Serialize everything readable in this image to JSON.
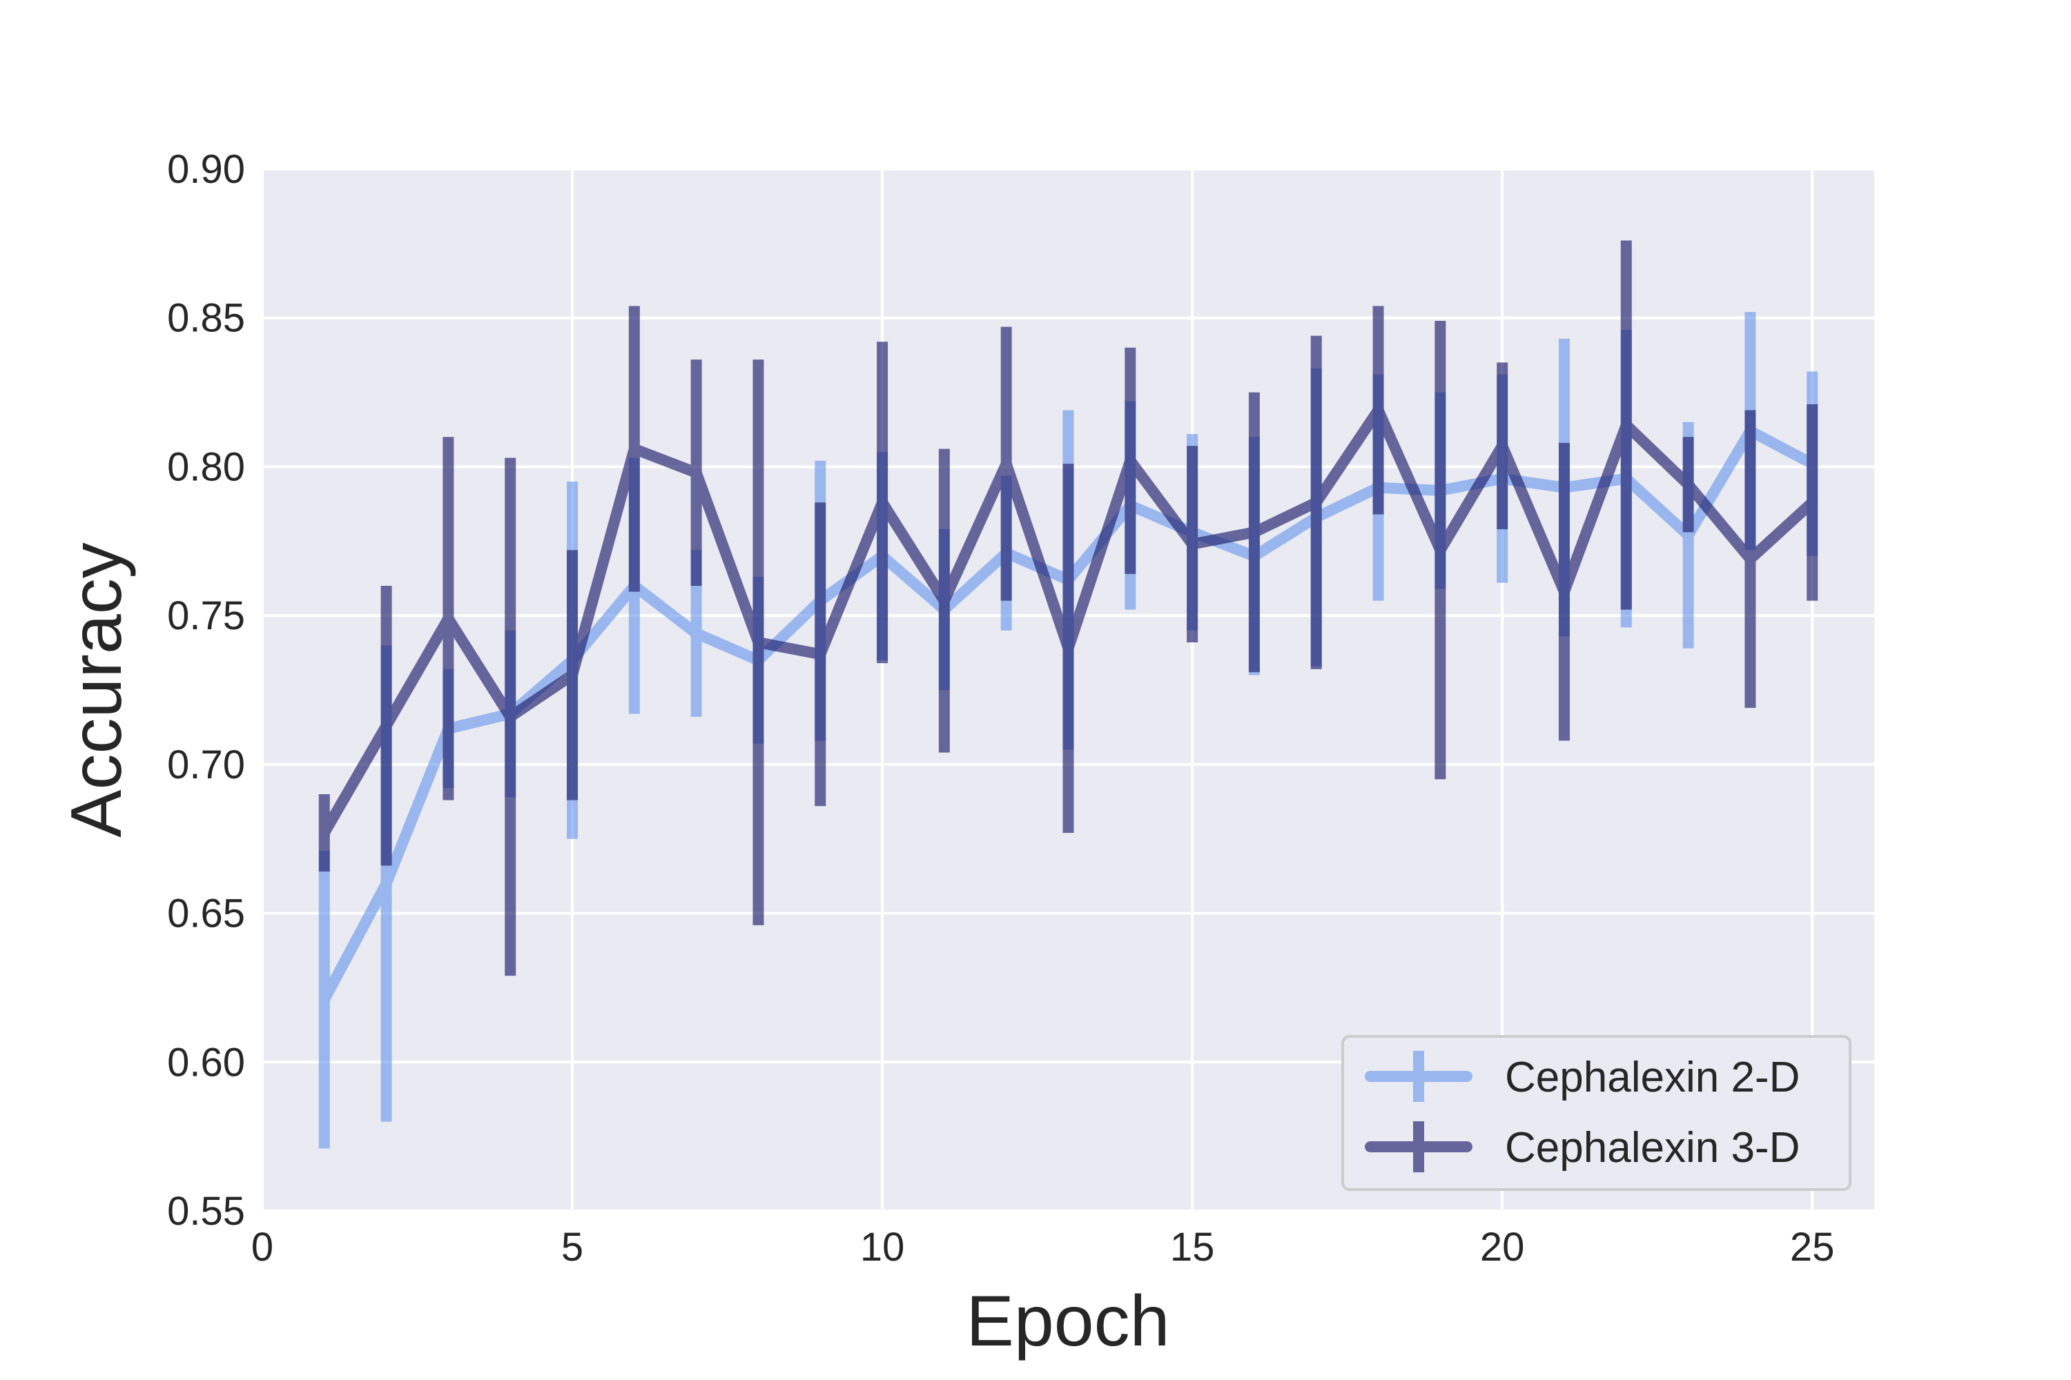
{
  "chart_data": {
    "type": "line",
    "xlabel": "Epoch",
    "ylabel": "Accuracy",
    "xlim": [
      0,
      26
    ],
    "ylim": [
      0.55,
      0.9
    ],
    "xticks": [
      0,
      5,
      10,
      15,
      20,
      25
    ],
    "yticks": [
      0.55,
      0.6,
      0.65,
      0.7,
      0.75,
      0.8,
      0.85,
      0.9
    ],
    "xtick_labels": [
      "0",
      "5",
      "10",
      "15",
      "20",
      "25"
    ],
    "ytick_labels": [
      "0.55",
      "0.60",
      "0.65",
      "0.70",
      "0.75",
      "0.80",
      "0.85",
      "0.90"
    ],
    "grid": true,
    "legend_position": "bottom-right",
    "x": [
      1,
      2,
      3,
      4,
      5,
      6,
      7,
      8,
      9,
      10,
      11,
      12,
      13,
      14,
      15,
      16,
      17,
      18,
      19,
      20,
      21,
      22,
      23,
      24,
      25
    ],
    "series": [
      {
        "name": "Cephalexin 2-D",
        "color": "#6495ED",
        "values": [
          0.621,
          0.66,
          0.712,
          0.717,
          0.735,
          0.76,
          0.744,
          0.735,
          0.755,
          0.77,
          0.752,
          0.771,
          0.762,
          0.787,
          0.778,
          0.77,
          0.783,
          0.793,
          0.792,
          0.796,
          0.793,
          0.796,
          0.777,
          0.812,
          0.801
        ],
        "errors": [
          0.05,
          0.08,
          0.02,
          0.028,
          0.06,
          0.043,
          0.028,
          0.028,
          0.047,
          0.035,
          0.027,
          0.026,
          0.057,
          0.035,
          0.033,
          0.04,
          0.05,
          0.038,
          0.033,
          0.035,
          0.05,
          0.05,
          0.038,
          0.04,
          0.031
        ]
      },
      {
        "name": "Cephalexin 3-D",
        "color": "#1F1F6E",
        "values": [
          0.677,
          0.713,
          0.749,
          0.716,
          0.73,
          0.806,
          0.798,
          0.741,
          0.737,
          0.788,
          0.755,
          0.801,
          0.739,
          0.802,
          0.774,
          0.778,
          0.788,
          0.819,
          0.772,
          0.807,
          0.758,
          0.814,
          0.794,
          0.769,
          0.788
        ],
        "errors": [
          0.013,
          0.047,
          0.061,
          0.087,
          0.042,
          0.048,
          0.038,
          0.095,
          0.051,
          0.054,
          0.051,
          0.046,
          0.062,
          0.038,
          0.033,
          0.047,
          0.056,
          0.035,
          0.077,
          0.028,
          0.05,
          0.062,
          0.016,
          0.05,
          0.033
        ]
      }
    ]
  }
}
